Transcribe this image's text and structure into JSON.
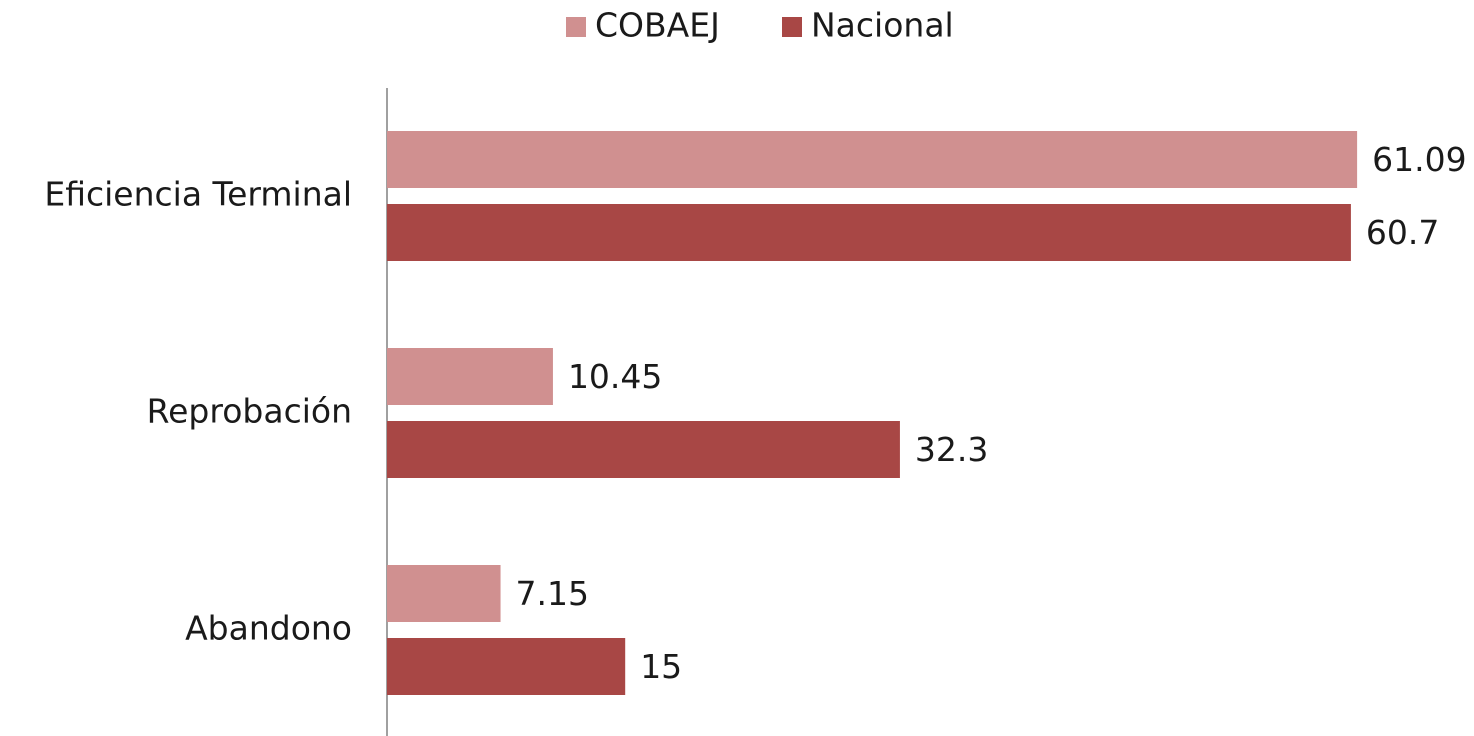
{
  "chart_data": {
    "type": "hbar",
    "categories": [
      "Eficiencia Terminal",
      "Reprobación",
      "Abandono"
    ],
    "series": [
      {
        "name": "COBAEJ",
        "color": "#d09090",
        "values": [
          61.09,
          10.45,
          7.15
        ]
      },
      {
        "name": "Nacional",
        "color": "#a84745",
        "values": [
          60.7,
          32.3,
          15
        ]
      }
    ],
    "xlim": [
      0,
      70
    ],
    "legend": "top"
  }
}
